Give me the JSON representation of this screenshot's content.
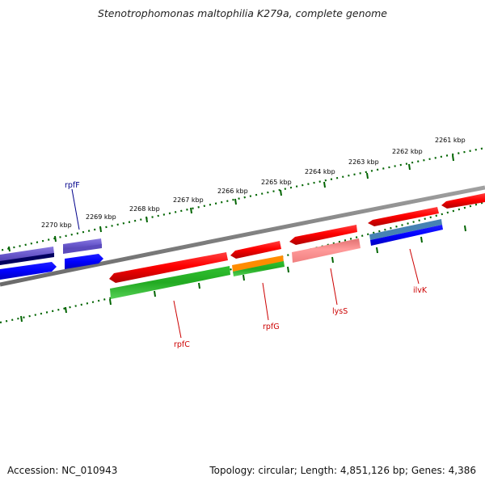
{
  "title": "Stenotrophomonas maltophilia K279a, complete genome",
  "footer": {
    "accession": "Accession: NC_010943",
    "topology": "Topology: circular; Length: 4,851,126 bp; Genes: 4,386"
  },
  "scale_labels": [
    "2270 kbp",
    "2269 kbp",
    "2268 kbp",
    "2267 kbp",
    "2266 kbp",
    "2265 kbp",
    "2264 kbp",
    "2263 kbp",
    "2262 kbp",
    "2261 kbp"
  ],
  "genes": [
    {
      "name": "rpfF",
      "color": "#00008b"
    },
    {
      "name": "rpfC",
      "color": "#cc0000"
    },
    {
      "name": "rpfG",
      "color": "#cc0000"
    },
    {
      "name": "lysS",
      "color": "#cc0000"
    },
    {
      "name": "ilvK",
      "color": "#cc0000"
    }
  ],
  "colors": {
    "backbone": "#808080",
    "forward_cds": "#ff0000",
    "forward_cds_light": "#ff8080",
    "reverse_cds": "#0000ff",
    "reverse_cds_purple": "#6a5acd",
    "dark_navy": "#000060",
    "steel_blue": "#4682b4",
    "green": "#22aa22",
    "orange": "#ff8c00",
    "scale": "#006400"
  }
}
